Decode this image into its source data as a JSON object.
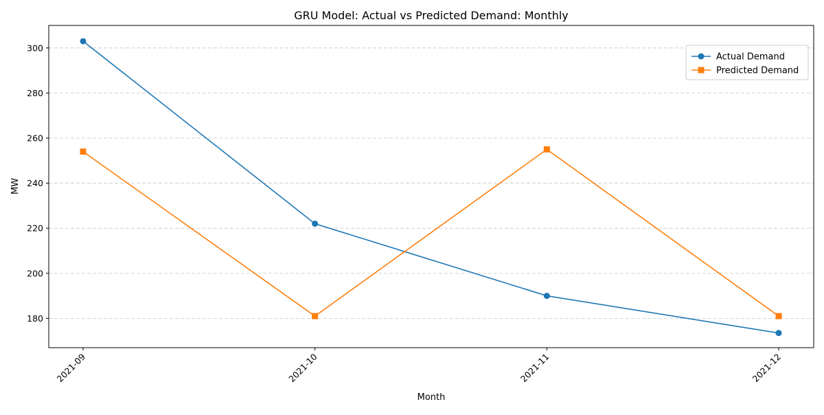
{
  "chart_data": {
    "type": "line",
    "title": "GRU Model: Actual vs Predicted Demand: Monthly",
    "xlabel": "Month",
    "ylabel": "MW",
    "categories": [
      "2021-09",
      "2021-10",
      "2021-11",
      "2021-12"
    ],
    "series": [
      {
        "name": "Actual Demand",
        "values": [
          303,
          222,
          190,
          173.5
        ],
        "color": "#1f77b4",
        "marker": "circle"
      },
      {
        "name": "Predicted Demand",
        "values": [
          254,
          181,
          255,
          181
        ],
        "color": "#ff7f0e",
        "marker": "square"
      }
    ],
    "ylim": [
      167,
      310
    ],
    "yticks": [
      180,
      200,
      220,
      240,
      260,
      280,
      300
    ],
    "grid": {
      "axis": "y",
      "style": "dashed",
      "color": "#c8c8c8"
    },
    "legend": "top-right"
  }
}
